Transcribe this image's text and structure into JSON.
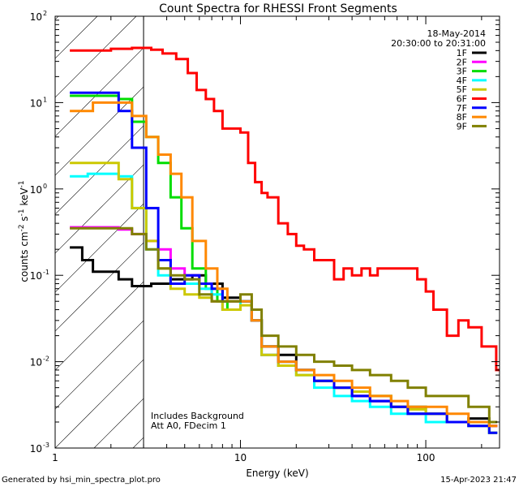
{
  "chart_data": {
    "type": "line",
    "title": "Count Spectra for RHESSI Front Segments",
    "xlabel": "Energy (keV)",
    "ylabel": "counts cm",
    "ylabel_sup1": "-2",
    "ylabel_mid": " s",
    "ylabel_sup2": "-1",
    "ylabel_end": " keV",
    "ylabel_sup3": "-1",
    "xscale": "log",
    "yscale": "log",
    "xlim": [
      1,
      250
    ],
    "ylim": [
      0.001,
      100
    ],
    "x_major_ticks": [
      1,
      10,
      100
    ],
    "x_major_labels": [
      "1",
      "10",
      "100"
    ],
    "y_major_ticks": [
      0.001,
      0.01,
      0.1,
      1,
      10,
      100
    ],
    "y_tick_base": "10",
    "y_tick_exps": [
      "-3",
      "-2",
      "-1",
      "0",
      "1",
      "2"
    ],
    "attenuator_boundary_keV": 3,
    "date_label": "18-May-2014",
    "time_range_label": "20:30:00 to 20:31:00",
    "annotations": [
      "Includes Background",
      "Att A0, FDecim 1"
    ],
    "footer_left": "Generated by hsi_min_spectra_plot.pro",
    "footer_right": "15-Apr-2023 21:47",
    "series": [
      {
        "name": "1F",
        "color": "#000000",
        "points": [
          [
            1.2,
            0.21
          ],
          [
            1.4,
            0.15
          ],
          [
            1.6,
            0.11
          ],
          [
            2.2,
            0.09
          ],
          [
            2.6,
            0.075
          ],
          [
            3.3,
            0.08
          ],
          [
            4.2,
            0.09
          ],
          [
            5.5,
            0.1
          ],
          [
            6.5,
            0.08
          ],
          [
            8,
            0.055
          ],
          [
            10,
            0.05
          ],
          [
            11.5,
            0.03
          ],
          [
            13,
            0.015
          ],
          [
            16,
            0.012
          ],
          [
            20,
            0.008
          ],
          [
            25,
            0.006
          ],
          [
            32,
            0.005
          ],
          [
            40,
            0.004
          ],
          [
            50,
            0.0035
          ],
          [
            65,
            0.003
          ],
          [
            80,
            0.0025
          ],
          [
            100,
            0.0025
          ],
          [
            130,
            0.002
          ],
          [
            170,
            0.0022
          ],
          [
            220,
            0.0018
          ]
        ]
      },
      {
        "name": "2F",
        "color": "#ff00ff",
        "points": [
          [
            1.2,
            0.36
          ],
          [
            2.2,
            0.34
          ],
          [
            2.6,
            0.3
          ],
          [
            3.1,
            0.25
          ],
          [
            3.6,
            0.2
          ],
          [
            4.2,
            0.12
          ],
          [
            5,
            0.1
          ],
          [
            6,
            0.08
          ],
          [
            7,
            0.05
          ],
          [
            8,
            0.04
          ],
          [
            10,
            0.05
          ],
          [
            11.5,
            0.03
          ],
          [
            13,
            0.012
          ],
          [
            16,
            0.009
          ],
          [
            20,
            0.008
          ],
          [
            25,
            0.006
          ],
          [
            32,
            0.005
          ],
          [
            40,
            0.004
          ],
          [
            50,
            0.0035
          ],
          [
            65,
            0.003
          ],
          [
            80,
            0.003
          ],
          [
            100,
            0.0025
          ],
          [
            130,
            0.002
          ],
          [
            170,
            0.002
          ],
          [
            220,
            0.0018
          ]
        ]
      },
      {
        "name": "3F",
        "color": "#00dd00",
        "points": [
          [
            1.2,
            12
          ],
          [
            1.8,
            12
          ],
          [
            2.2,
            11
          ],
          [
            2.6,
            6
          ],
          [
            3.1,
            4
          ],
          [
            3.6,
            2
          ],
          [
            4.2,
            0.8
          ],
          [
            4.8,
            0.35
          ],
          [
            5.5,
            0.12
          ],
          [
            6.5,
            0.07
          ],
          [
            7.5,
            0.05
          ],
          [
            8.5,
            0.04
          ],
          [
            10,
            0.05
          ],
          [
            11.5,
            0.03
          ],
          [
            13,
            0.015
          ],
          [
            16,
            0.01
          ],
          [
            20,
            0.008
          ],
          [
            25,
            0.006
          ],
          [
            32,
            0.005
          ],
          [
            40,
            0.0045
          ],
          [
            50,
            0.004
          ],
          [
            65,
            0.003
          ],
          [
            80,
            0.003
          ],
          [
            100,
            0.0025
          ],
          [
            130,
            0.002
          ],
          [
            170,
            0.002
          ],
          [
            220,
            0.0015
          ]
        ]
      },
      {
        "name": "4F",
        "color": "#00ffff",
        "points": [
          [
            1.2,
            1.4
          ],
          [
            1.5,
            1.5
          ],
          [
            2.2,
            1.4
          ],
          [
            2.6,
            0.6
          ],
          [
            3.1,
            0.2
          ],
          [
            3.6,
            0.1
          ],
          [
            4.2,
            0.08
          ],
          [
            5,
            0.08
          ],
          [
            6,
            0.07
          ],
          [
            7,
            0.06
          ],
          [
            8,
            0.04
          ],
          [
            10,
            0.05
          ],
          [
            11.5,
            0.03
          ],
          [
            13,
            0.012
          ],
          [
            16,
            0.009
          ],
          [
            20,
            0.007
          ],
          [
            25,
            0.005
          ],
          [
            32,
            0.004
          ],
          [
            40,
            0.0035
          ],
          [
            50,
            0.003
          ],
          [
            65,
            0.0025
          ],
          [
            80,
            0.0025
          ],
          [
            100,
            0.002
          ],
          [
            130,
            0.002
          ],
          [
            170,
            0.0018
          ],
          [
            220,
            0.0015
          ]
        ]
      },
      {
        "name": "5F",
        "color": "#ccc800",
        "points": [
          [
            1.2,
            2
          ],
          [
            1.8,
            2
          ],
          [
            2.2,
            1.3
          ],
          [
            2.6,
            0.6
          ],
          [
            3.1,
            0.25
          ],
          [
            3.6,
            0.12
          ],
          [
            4.2,
            0.07
          ],
          [
            5,
            0.06
          ],
          [
            6,
            0.055
          ],
          [
            7,
            0.05
          ],
          [
            8,
            0.04
          ],
          [
            10,
            0.045
          ],
          [
            11.5,
            0.03
          ],
          [
            13,
            0.012
          ],
          [
            16,
            0.009
          ],
          [
            20,
            0.007
          ],
          [
            25,
            0.006
          ],
          [
            32,
            0.005
          ],
          [
            40,
            0.0045
          ],
          [
            50,
            0.004
          ],
          [
            65,
            0.003
          ],
          [
            80,
            0.0028
          ],
          [
            100,
            0.0025
          ],
          [
            130,
            0.002
          ],
          [
            170,
            0.0018
          ],
          [
            220,
            0.0015
          ]
        ]
      },
      {
        "name": "6F",
        "color": "#ff0000",
        "points": [
          [
            1.2,
            40
          ],
          [
            2,
            42
          ],
          [
            2.6,
            43
          ],
          [
            3.3,
            41
          ],
          [
            3.8,
            37
          ],
          [
            4.5,
            32
          ],
          [
            5.2,
            22
          ],
          [
            5.8,
            14
          ],
          [
            6.5,
            11
          ],
          [
            7.2,
            8
          ],
          [
            8,
            5
          ],
          [
            9,
            5
          ],
          [
            10,
            4.5
          ],
          [
            11,
            2
          ],
          [
            12,
            1.2
          ],
          [
            13,
            0.9
          ],
          [
            14,
            0.8
          ],
          [
            16,
            0.4
          ],
          [
            18,
            0.3
          ],
          [
            20,
            0.22
          ],
          [
            22,
            0.2
          ],
          [
            25,
            0.15
          ],
          [
            28,
            0.15
          ],
          [
            32,
            0.09
          ],
          [
            36,
            0.12
          ],
          [
            40,
            0.1
          ],
          [
            45,
            0.12
          ],
          [
            50,
            0.1
          ],
          [
            55,
            0.12
          ],
          [
            60,
            0.12
          ],
          [
            70,
            0.12
          ],
          [
            80,
            0.12
          ],
          [
            90,
            0.09
          ],
          [
            100,
            0.065
          ],
          [
            110,
            0.04
          ],
          [
            130,
            0.02
          ],
          [
            150,
            0.03
          ],
          [
            170,
            0.025
          ],
          [
            200,
            0.015
          ],
          [
            240,
            0.008
          ]
        ]
      },
      {
        "name": "7F",
        "color": "#0000ff",
        "points": [
          [
            1.2,
            13
          ],
          [
            1.8,
            13
          ],
          [
            2.2,
            8
          ],
          [
            2.6,
            3
          ],
          [
            3.1,
            0.6
          ],
          [
            3.6,
            0.15
          ],
          [
            4.2,
            0.08
          ],
          [
            5,
            0.1
          ],
          [
            6,
            0.08
          ],
          [
            7,
            0.07
          ],
          [
            8,
            0.05
          ],
          [
            10,
            0.05
          ],
          [
            11.5,
            0.03
          ],
          [
            13,
            0.015
          ],
          [
            16,
            0.01
          ],
          [
            20,
            0.008
          ],
          [
            25,
            0.006
          ],
          [
            32,
            0.005
          ],
          [
            40,
            0.004
          ],
          [
            50,
            0.0035
          ],
          [
            65,
            0.003
          ],
          [
            80,
            0.0025
          ],
          [
            100,
            0.0025
          ],
          [
            130,
            0.002
          ],
          [
            170,
            0.0018
          ],
          [
            220,
            0.0015
          ]
        ]
      },
      {
        "name": "8F",
        "color": "#ff8800",
        "points": [
          [
            1.2,
            8
          ],
          [
            1.6,
            10
          ],
          [
            2.2,
            10
          ],
          [
            2.6,
            7
          ],
          [
            3.1,
            4
          ],
          [
            3.6,
            2.5
          ],
          [
            4.2,
            1.5
          ],
          [
            4.8,
            0.8
          ],
          [
            5.5,
            0.25
          ],
          [
            6.5,
            0.12
          ],
          [
            7.5,
            0.07
          ],
          [
            8.5,
            0.05
          ],
          [
            10,
            0.05
          ],
          [
            11.5,
            0.03
          ],
          [
            13,
            0.015
          ],
          [
            16,
            0.01
          ],
          [
            20,
            0.008
          ],
          [
            25,
            0.007
          ],
          [
            32,
            0.006
          ],
          [
            40,
            0.005
          ],
          [
            50,
            0.004
          ],
          [
            65,
            0.0035
          ],
          [
            80,
            0.003
          ],
          [
            100,
            0.003
          ],
          [
            130,
            0.0025
          ],
          [
            170,
            0.002
          ],
          [
            220,
            0.0018
          ]
        ]
      },
      {
        "name": "9F",
        "color": "#808000",
        "points": [
          [
            1.2,
            0.35
          ],
          [
            2,
            0.35
          ],
          [
            2.6,
            0.3
          ],
          [
            3.1,
            0.2
          ],
          [
            3.6,
            0.12
          ],
          [
            4.2,
            0.1
          ],
          [
            5,
            0.09
          ],
          [
            6,
            0.06
          ],
          [
            7,
            0.05
          ],
          [
            8,
            0.05
          ],
          [
            10,
            0.06
          ],
          [
            11.5,
            0.04
          ],
          [
            13,
            0.02
          ],
          [
            16,
            0.015
          ],
          [
            20,
            0.012
          ],
          [
            25,
            0.01
          ],
          [
            32,
            0.009
          ],
          [
            40,
            0.008
          ],
          [
            50,
            0.007
          ],
          [
            65,
            0.006
          ],
          [
            80,
            0.005
          ],
          [
            100,
            0.004
          ],
          [
            130,
            0.004
          ],
          [
            170,
            0.003
          ],
          [
            220,
            0.002
          ]
        ]
      }
    ]
  }
}
